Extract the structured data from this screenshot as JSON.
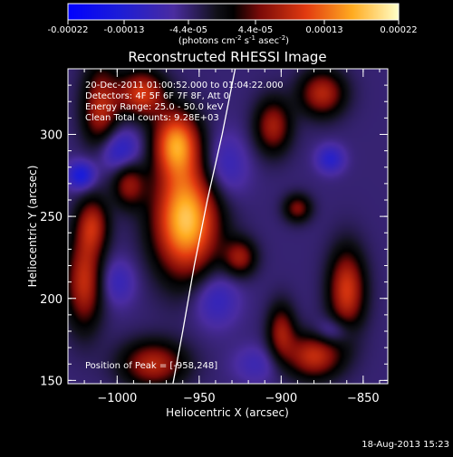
{
  "colorbar": {
    "ticks": [
      "-0.00022",
      "-0.00013",
      "-4.4e-05",
      "4.4e-05",
      "0.00013",
      "0.00022"
    ],
    "label_html": "(photons cm<tspan baseline-shift=\"super\" font-size=\"7\">-2</tspan> s<tspan baseline-shift=\"super\" font-size=\"7\">-1</tspan> asec<tspan baseline-shift=\"super\" font-size=\"7\">-2</tspan>)"
  },
  "chart_data": {
    "type": "heatmap",
    "title": "Reconstructed RHESSI Image",
    "xlabel": "Heliocentric X (arcsec)",
    "ylabel": "Heliocentric Y (arcsec)",
    "xlim": [
      -1030,
      -835
    ],
    "ylim": [
      148,
      340
    ],
    "x_ticks": [
      -1000,
      -950,
      -900,
      -850
    ],
    "x_tick_labels": [
      "−1000",
      "−950",
      "−900",
      "−850"
    ],
    "y_ticks": [
      150,
      200,
      250,
      300
    ],
    "y_tick_labels": [
      "150",
      "200",
      "250",
      "300"
    ],
    "colormap_range": [
      -0.00022,
      0.00022
    ],
    "annotations": [
      "20-Dec-2011 01:00:52.000 to 01:04:22.000",
      "Detectors: 4F 5F 6F 7F 8F, Att 0",
      "Energy Range: 25.0 - 50.0 keV",
      "Clean     Total counts: 9.28E+03"
    ],
    "peak_label": "Position of Peak = [-958,248]",
    "peak": [
      -958,
      248
    ],
    "limb_curve": [
      [
        -966,
        148
      ],
      [
        -960,
        180
      ],
      [
        -953,
        220
      ],
      [
        -945,
        260
      ],
      [
        -936,
        300
      ],
      [
        -928,
        340
      ]
    ],
    "blobs": [
      {
        "x": -958,
        "y": 248,
        "sx": 14,
        "sy": 24,
        "v": 0.00022
      },
      {
        "x": -964,
        "y": 295,
        "sx": 10,
        "sy": 14,
        "v": 0.00017
      },
      {
        "x": -985,
        "y": 325,
        "sx": 10,
        "sy": 10,
        "v": 0.00013
      },
      {
        "x": -1010,
        "y": 315,
        "sx": 8,
        "sy": 20,
        "v": 0.00011
      },
      {
        "x": -993,
        "y": 270,
        "sx": 7,
        "sy": 10,
        "v": 9e-05
      },
      {
        "x": -1015,
        "y": 245,
        "sx": 7,
        "sy": 12,
        "v": 0.0001
      },
      {
        "x": -1020,
        "y": 210,
        "sx": 8,
        "sy": 20,
        "v": 0.00012
      },
      {
        "x": -978,
        "y": 160,
        "sx": 14,
        "sy": 10,
        "v": 0.00011
      },
      {
        "x": -925,
        "y": 225,
        "sx": 7,
        "sy": 8,
        "v": 9e-05
      },
      {
        "x": -905,
        "y": 305,
        "sx": 8,
        "sy": 12,
        "v": 0.0001
      },
      {
        "x": -875,
        "y": 325,
        "sx": 10,
        "sy": 10,
        "v": 0.00011
      },
      {
        "x": -860,
        "y": 205,
        "sx": 8,
        "sy": 18,
        "v": 0.00013
      },
      {
        "x": -880,
        "y": 165,
        "sx": 12,
        "sy": 10,
        "v": 0.00012
      },
      {
        "x": -900,
        "y": 180,
        "sx": 6,
        "sy": 12,
        "v": 9e-05
      },
      {
        "x": -890,
        "y": 255,
        "sx": 6,
        "sy": 6,
        "v": 8e-05
      },
      {
        "x": -1000,
        "y": 290,
        "sx": 10,
        "sy": 10,
        "v": -0.00011
      },
      {
        "x": -1022,
        "y": 275,
        "sx": 6,
        "sy": 6,
        "v": -0.00012
      },
      {
        "x": -935,
        "y": 280,
        "sx": 10,
        "sy": 14,
        "v": -8e-05
      },
      {
        "x": -940,
        "y": 200,
        "sx": 10,
        "sy": 12,
        "v": -8e-05
      },
      {
        "x": -870,
        "y": 285,
        "sx": 6,
        "sy": 6,
        "v": -9e-05
      },
      {
        "x": -868,
        "y": 180,
        "sx": 8,
        "sy": 6,
        "v": -8e-05
      },
      {
        "x": -1000,
        "y": 210,
        "sx": 8,
        "sy": 10,
        "v": -7e-05
      },
      {
        "x": -915,
        "y": 160,
        "sx": 10,
        "sy": 8,
        "v": -6e-05
      }
    ]
  },
  "footer": {
    "date": "18-Aug-2013 15:23"
  }
}
